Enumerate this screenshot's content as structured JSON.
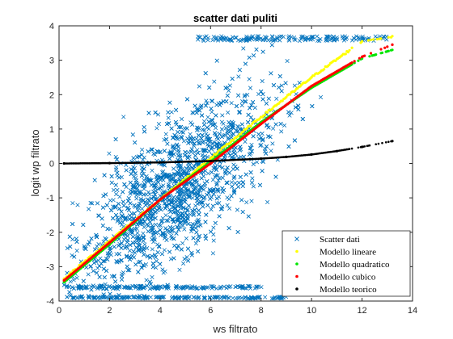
{
  "chart_data": {
    "type": "scatter",
    "title": "scatter dati puliti",
    "xlabel": "ws filtrato",
    "ylabel": "logit wp filtrato",
    "xlim": [
      0,
      14
    ],
    "ylim": [
      -4,
      4
    ],
    "xticks": [
      0,
      2,
      4,
      6,
      8,
      10,
      12,
      14
    ],
    "yticks": [
      -4,
      -3,
      -2,
      -1,
      0,
      1,
      2,
      3,
      4
    ],
    "legend_position": "bottom-right",
    "series": [
      {
        "name": "Scatter dati",
        "marker": "x",
        "color": "#0072BD",
        "description_cloud": {
          "x_range": [
            0.2,
            13.2
          ],
          "trend": "positive",
          "cap_values": [
            -3.9,
            -3.6,
            3.7
          ],
          "spread_at_x": [
            [
              2,
              -3.5,
              0.5
            ],
            [
              4,
              -3.0,
              2.8
            ],
            [
              6,
              -2.5,
              3.7
            ],
            [
              8,
              -1.5,
              3.7
            ],
            [
              10,
              -1.2,
              3.7
            ],
            [
              12,
              0.8,
              3.7
            ]
          ]
        }
      },
      {
        "name": "Modello lineare",
        "marker": "dot",
        "color": "#FFFF00",
        "x": [
          0.2,
          2,
          4,
          6,
          8,
          10,
          12,
          13.2
        ],
        "y": [
          -3.35,
          -2.25,
          -1.05,
          0.15,
          1.35,
          2.5,
          3.55,
          3.7
        ]
      },
      {
        "name": "Modello quadratico",
        "marker": "dot",
        "color": "#00E600",
        "x": [
          0.2,
          2,
          4,
          6,
          8,
          10,
          12,
          13.2
        ],
        "y": [
          -3.45,
          -2.35,
          -1.05,
          0.05,
          1.2,
          2.2,
          3.05,
          3.3
        ]
      },
      {
        "name": "Modello cubico",
        "marker": "dot",
        "color": "#FF0000",
        "x": [
          0.2,
          2,
          4,
          6,
          8,
          10,
          12,
          13.2
        ],
        "y": [
          -3.4,
          -2.3,
          -1.05,
          0.0,
          1.15,
          2.25,
          3.1,
          3.45
        ]
      },
      {
        "name": "Modello teorico",
        "marker": "dot",
        "color": "#000000",
        "x": [
          0.2,
          2,
          4,
          6,
          8,
          9,
          10,
          11,
          12,
          13.2
        ],
        "y": [
          0.0,
          0.01,
          0.03,
          0.07,
          0.14,
          0.19,
          0.26,
          0.36,
          0.48,
          0.65
        ]
      }
    ]
  }
}
